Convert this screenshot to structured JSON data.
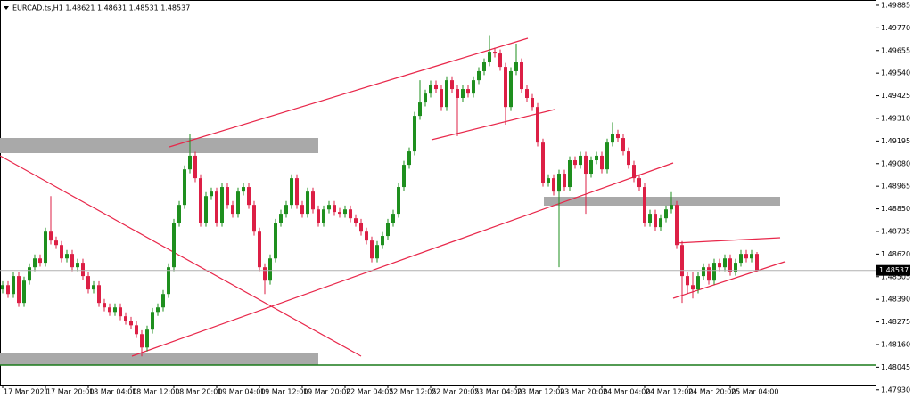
{
  "chart_data": {
    "type": "candlestick",
    "title": "EURCAD.ts,H1  1.48621 1.48631 1.48531 1.48537",
    "current_price": 1.48537,
    "categories": [
      "17 Mar 2021",
      null,
      null,
      null,
      null,
      null,
      null,
      null,
      "17 Mar 20:00",
      null,
      null,
      null,
      null,
      null,
      null,
      null,
      "18 Mar 04:00",
      null,
      null,
      null,
      null,
      null,
      null,
      null,
      "18 Mar 12:00",
      null,
      null,
      null,
      null,
      null,
      null,
      null,
      "18 Mar 20:00",
      null,
      null,
      null,
      null,
      null,
      null,
      null,
      "19 Mar 04:00",
      null,
      null,
      null,
      null,
      null,
      null,
      null,
      "19 Mar 12:00",
      null,
      null,
      null,
      null,
      null,
      null,
      null,
      "19 Mar 20:00",
      null,
      null,
      null,
      null,
      null,
      null,
      null,
      "22 Mar 04:05",
      null,
      null,
      null,
      null,
      null,
      null,
      null,
      "22 Mar 12:05",
      null,
      null,
      null,
      null,
      null,
      null,
      null,
      "22 Mar 20:05",
      null,
      null,
      null,
      null,
      null,
      null,
      null,
      "23 Mar 04:00",
      null,
      null,
      null,
      null,
      null,
      null,
      null,
      "23 Mar 12:00",
      null,
      null,
      null,
      null,
      null,
      null,
      null,
      "23 Mar 20:00",
      null,
      null,
      null,
      null,
      null,
      null,
      null,
      "24 Mar 04:00",
      null,
      null,
      null,
      null,
      null,
      null,
      null,
      "24 Mar 12:00",
      null,
      null,
      null,
      null,
      null,
      null,
      null,
      "24 Mar 20:00",
      null,
      null,
      null,
      null,
      null,
      null,
      null,
      "25 Mar 04:00",
      null,
      null,
      null,
      null,
      null
    ],
    "open": [
      1.4844,
      1.48462,
      1.48417,
      1.48508,
      1.48372,
      1.48485,
      1.48553,
      1.48598,
      1.48576,
      1.48734,
      1.48689,
      1.48666,
      1.48598,
      1.48621,
      1.48553,
      1.48576,
      1.48508,
      1.4844,
      1.48462,
      1.48372,
      1.48349,
      1.48326,
      1.48349,
      1.48304,
      1.48281,
      1.48258,
      1.48213,
      1.48145,
      1.48236,
      1.48326,
      1.48349,
      1.48417,
      1.48553,
      1.48779,
      1.4887,
      1.49051,
      1.4912,
      1.49006,
      1.48779,
      1.48915,
      1.48938,
      1.48779,
      1.48961,
      1.4887,
      1.48825,
      1.48938,
      1.48961,
      1.4887,
      1.48734,
      1.48553,
      1.48485,
      1.48598,
      1.48779,
      1.48825,
      1.4887,
      1.49006,
      1.4887,
      1.48825,
      1.48938,
      1.48847,
      1.48779,
      1.48847,
      1.4887,
      1.48834,
      1.48825,
      1.48847,
      1.48802,
      1.48779,
      1.48734,
      1.48689,
      1.48598,
      1.48666,
      1.48712,
      1.48779,
      1.48825,
      1.48961,
      1.49074,
      1.49142,
      1.49323,
      1.49391,
      1.49436,
      1.49482,
      1.49459,
      1.49368,
      1.49504,
      1.49459,
      1.49414,
      1.49459,
      1.49436,
      1.49504,
      1.4955,
      1.49595,
      1.49649,
      1.4964,
      1.49572,
      1.49368,
      1.4955,
      1.49595,
      1.49459,
      1.49414,
      1.49368,
      1.49187,
      1.48983,
      1.49006,
      1.48938,
      1.49029,
      1.48961,
      1.49097,
      1.49074,
      1.4912,
      1.49029,
      1.49097,
      1.4912,
      1.49051,
      1.49187,
      1.49232,
      1.4921,
      1.49142,
      1.49074,
      1.49006,
      1.48961,
      1.48779,
      1.48825,
      1.48757,
      1.48802,
      1.48847,
      1.4887,
      1.48666,
      1.48508,
      1.48462,
      1.4844,
      1.48508,
      1.48553,
      1.48485,
      1.48576,
      1.48553,
      1.48598,
      1.4853,
      1.48576,
      1.48621,
      1.48598,
      1.48621
    ],
    "high": [
      1.48482,
      1.48482,
      1.48528,
      1.48528,
      1.48505,
      1.48573,
      1.48618,
      1.48618,
      1.48754,
      1.48915,
      1.48709,
      1.48686,
      1.48641,
      1.48641,
      1.48596,
      1.48596,
      1.48528,
      1.48482,
      1.48482,
      1.48392,
      1.48369,
      1.48369,
      1.48369,
      1.48324,
      1.48301,
      1.48278,
      1.48233,
      1.48256,
      1.48346,
      1.48369,
      1.48437,
      1.48573,
      1.48799,
      1.4889,
      1.49071,
      1.49232,
      1.4914,
      1.49026,
      1.48935,
      1.48958,
      1.48958,
      1.48981,
      1.48981,
      1.4889,
      1.48958,
      1.48981,
      1.48981,
      1.4889,
      1.48754,
      1.48573,
      1.48618,
      1.48799,
      1.48845,
      1.4889,
      1.49026,
      1.49026,
      1.4889,
      1.48958,
      1.48958,
      1.48867,
      1.48867,
      1.4889,
      1.4889,
      1.48854,
      1.48867,
      1.48867,
      1.48822,
      1.48799,
      1.48754,
      1.48709,
      1.48686,
      1.48732,
      1.48799,
      1.48845,
      1.48981,
      1.49094,
      1.49162,
      1.49343,
      1.49504,
      1.49456,
      1.49502,
      1.49502,
      1.49479,
      1.49524,
      1.49524,
      1.49479,
      1.49479,
      1.49479,
      1.49524,
      1.4957,
      1.49615,
      1.49733,
      1.49669,
      1.4966,
      1.49592,
      1.4957,
      1.4969,
      1.49615,
      1.49479,
      1.49434,
      1.49388,
      1.49207,
      1.49026,
      1.49026,
      1.49049,
      1.49049,
      1.49117,
      1.49117,
      1.4914,
      1.4914,
      1.49117,
      1.4914,
      1.4914,
      1.49207,
      1.4929,
      1.49252,
      1.4923,
      1.49162,
      1.49094,
      1.49026,
      1.48981,
      1.48845,
      1.48845,
      1.48822,
      1.48867,
      1.48935,
      1.4889,
      1.48686,
      1.48528,
      1.4853,
      1.48528,
      1.48573,
      1.48573,
      1.48596,
      1.48596,
      1.48618,
      1.48618,
      1.48596,
      1.48641,
      1.48641,
      1.48641,
      1.48631
    ],
    "low": [
      1.4842,
      1.48397,
      1.48397,
      1.48352,
      1.48352,
      1.48465,
      1.48533,
      1.48556,
      1.48556,
      1.48669,
      1.48646,
      1.48578,
      1.48578,
      1.48533,
      1.48533,
      1.48488,
      1.4842,
      1.4842,
      1.48352,
      1.48329,
      1.48306,
      1.48306,
      1.48284,
      1.48261,
      1.48238,
      1.48193,
      1.481,
      1.48125,
      1.48216,
      1.48306,
      1.48329,
      1.48397,
      1.48533,
      1.48759,
      1.4885,
      1.49031,
      1.48986,
      1.48759,
      1.48759,
      1.48895,
      1.48759,
      1.48759,
      1.4885,
      1.48805,
      1.48805,
      1.48918,
      1.4885,
      1.48714,
      1.48533,
      1.48417,
      1.48465,
      1.48578,
      1.48759,
      1.48805,
      1.4885,
      1.4885,
      1.48805,
      1.48805,
      1.48827,
      1.48759,
      1.48759,
      1.48827,
      1.48814,
      1.48805,
      1.48805,
      1.48782,
      1.48759,
      1.48714,
      1.48669,
      1.48578,
      1.48578,
      1.48646,
      1.48692,
      1.48759,
      1.48805,
      1.48941,
      1.49054,
      1.49122,
      1.49303,
      1.49371,
      1.49416,
      1.49439,
      1.49348,
      1.49348,
      1.49439,
      1.4922,
      1.49394,
      1.49416,
      1.49416,
      1.49484,
      1.4953,
      1.49575,
      1.4962,
      1.49552,
      1.49278,
      1.49348,
      1.4953,
      1.49439,
      1.49394,
      1.49348,
      1.49167,
      1.48963,
      1.48963,
      1.48918,
      1.48553,
      1.48941,
      1.48941,
      1.49054,
      1.49054,
      1.48825,
      1.49009,
      1.49077,
      1.49031,
      1.49031,
      1.49167,
      1.4919,
      1.49122,
      1.49054,
      1.48986,
      1.48941,
      1.48759,
      1.48759,
      1.48737,
      1.48737,
      1.48782,
      1.48827,
      1.48646,
      1.48372,
      1.48417,
      1.48394,
      1.4842,
      1.48488,
      1.48465,
      1.48465,
      1.48533,
      1.48533,
      1.4851,
      1.4851,
      1.48556,
      1.48578,
      1.48578,
      1.48531
    ],
    "close": [
      1.48462,
      1.48417,
      1.48508,
      1.48372,
      1.48485,
      1.48553,
      1.48598,
      1.48576,
      1.48734,
      1.48689,
      1.48666,
      1.48598,
      1.48621,
      1.48553,
      1.48576,
      1.48508,
      1.4844,
      1.48462,
      1.48372,
      1.48349,
      1.48326,
      1.48349,
      1.48304,
      1.48281,
      1.48258,
      1.48213,
      1.48145,
      1.48236,
      1.48326,
      1.48349,
      1.48417,
      1.48553,
      1.48779,
      1.4887,
      1.49051,
      1.4912,
      1.49006,
      1.48779,
      1.48915,
      1.48938,
      1.48779,
      1.48961,
      1.4887,
      1.48825,
      1.48938,
      1.48961,
      1.4887,
      1.48734,
      1.48553,
      1.48485,
      1.48598,
      1.48779,
      1.48825,
      1.4887,
      1.49006,
      1.4887,
      1.48825,
      1.48938,
      1.48847,
      1.48779,
      1.48847,
      1.4887,
      1.48834,
      1.48825,
      1.48847,
      1.48802,
      1.48779,
      1.48734,
      1.48689,
      1.48598,
      1.48666,
      1.48712,
      1.48779,
      1.48825,
      1.48961,
      1.49074,
      1.49142,
      1.49323,
      1.49391,
      1.49436,
      1.49482,
      1.49459,
      1.49368,
      1.49504,
      1.49459,
      1.49414,
      1.49459,
      1.49436,
      1.49504,
      1.4955,
      1.49595,
      1.49649,
      1.4964,
      1.49572,
      1.49368,
      1.4955,
      1.49595,
      1.49459,
      1.49414,
      1.49368,
      1.49187,
      1.48983,
      1.49006,
      1.48938,
      1.49029,
      1.48961,
      1.49097,
      1.49074,
      1.4912,
      1.49029,
      1.49097,
      1.4912,
      1.49051,
      1.49187,
      1.49232,
      1.4921,
      1.49142,
      1.49074,
      1.49006,
      1.48961,
      1.48779,
      1.48825,
      1.48757,
      1.48802,
      1.48847,
      1.4887,
      1.48666,
      1.48508,
      1.48462,
      1.4844,
      1.48508,
      1.48553,
      1.48485,
      1.48576,
      1.48553,
      1.48598,
      1.4853,
      1.48576,
      1.48621,
      1.48598,
      1.48621,
      1.48537
    ],
    "up_color": "#1e8f1e",
    "down_color": "#dc1f45",
    "ylim": [
      1.479,
      1.49912
    ],
    "yticks": [
      1.49885,
      {
        "value": 1.4977,
        "label": "1.49770"
      },
      1.49655,
      {
        "value": 1.4954,
        "label": "1.49540"
      },
      1.49425,
      {
        "value": 1.4931,
        "label": "1.49310"
      },
      1.49195,
      {
        "value": 1.4908,
        "label": "1.49080"
      },
      1.48965,
      {
        "value": 1.4885,
        "label": "1.48850"
      },
      1.48735,
      {
        "value": 1.4862,
        "label": "1.48620"
      },
      1.48505,
      {
        "value": 1.4839,
        "label": "1.48390"
      },
      1.48275,
      {
        "value": 1.4816,
        "label": "1.48160"
      },
      1.48045,
      {
        "value": 1.4793,
        "label": "1.47930"
      }
    ]
  }
}
